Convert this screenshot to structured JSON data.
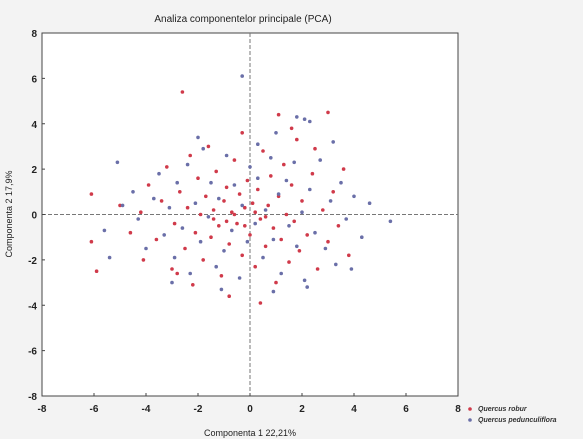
{
  "chart_data": {
    "type": "scatter",
    "title": "Analiza componentelor principale (PCA)",
    "xlabel": "Componenta 1  22,21%",
    "ylabel": "Componenta 2 17,9%",
    "xlim": [
      -8,
      8
    ],
    "ylim": [
      -8,
      8
    ],
    "xticks": [
      "-8",
      "-6",
      "-4",
      "-2",
      "0",
      "2",
      "4",
      "6",
      "8"
    ],
    "yticks": [
      "8",
      "6",
      "4",
      "2",
      "0",
      "-2",
      "-4",
      "-6",
      "-8"
    ],
    "zero_lines": true,
    "legend_position": "bottom-right",
    "series": [
      {
        "name": "Quercus robur",
        "color": "#d03a4a",
        "points": [
          [
            -2.6,
            5.4
          ],
          [
            1.1,
            4.4
          ],
          [
            3.0,
            4.5
          ],
          [
            -6.1,
            0.9
          ],
          [
            -6.1,
            -1.2
          ],
          [
            -5.9,
            -2.5
          ],
          [
            -5.0,
            0.4
          ],
          [
            -4.6,
            -0.8
          ],
          [
            -4.2,
            0.1
          ],
          [
            -3.9,
            1.3
          ],
          [
            -3.6,
            -1.1
          ],
          [
            -3.4,
            0.6
          ],
          [
            -3.2,
            2.1
          ],
          [
            -3.0,
            -2.4
          ],
          [
            -2.9,
            -0.4
          ],
          [
            -2.7,
            1.0
          ],
          [
            -2.5,
            -1.5
          ],
          [
            -2.4,
            0.3
          ],
          [
            -2.3,
            2.6
          ],
          [
            -2.2,
            -3.1
          ],
          [
            -2.1,
            -0.8
          ],
          [
            -2.0,
            1.6
          ],
          [
            -1.9,
            0.0
          ],
          [
            -1.8,
            -2.0
          ],
          [
            -1.7,
            0.8
          ],
          [
            -1.6,
            3.0
          ],
          [
            -1.5,
            -1.0
          ],
          [
            -1.4,
            0.2
          ],
          [
            -1.3,
            1.9
          ],
          [
            -1.2,
            -0.5
          ],
          [
            -1.1,
            -2.7
          ],
          [
            -1.0,
            0.6
          ],
          [
            -0.9,
            1.2
          ],
          [
            -0.8,
            -1.3
          ],
          [
            -0.7,
            0.1
          ],
          [
            -0.6,
            2.4
          ],
          [
            -0.5,
            -0.4
          ],
          [
            -0.4,
            0.9
          ],
          [
            -0.3,
            -1.8
          ],
          [
            -0.2,
            0.3
          ],
          [
            -0.1,
            1.5
          ],
          [
            0.0,
            -0.9
          ],
          [
            0.1,
            0.5
          ],
          [
            0.2,
            -2.3
          ],
          [
            0.3,
            1.1
          ],
          [
            0.4,
            -0.2
          ],
          [
            0.5,
            2.8
          ],
          [
            0.6,
            -1.4
          ],
          [
            0.7,
            0.4
          ],
          [
            0.8,
            1.7
          ],
          [
            0.9,
            -0.6
          ],
          [
            1.0,
            -3.0
          ],
          [
            1.1,
            0.8
          ],
          [
            1.2,
            -1.1
          ],
          [
            1.3,
            2.2
          ],
          [
            1.4,
            0.0
          ],
          [
            1.5,
            -2.1
          ],
          [
            1.6,
            1.3
          ],
          [
            1.7,
            -0.3
          ],
          [
            1.8,
            3.3
          ],
          [
            1.9,
            -1.6
          ],
          [
            2.0,
            0.6
          ],
          [
            2.2,
            -0.9
          ],
          [
            2.4,
            1.8
          ],
          [
            2.6,
            -2.4
          ],
          [
            2.8,
            0.2
          ],
          [
            3.0,
            -1.2
          ],
          [
            3.2,
            1.0
          ],
          [
            3.4,
            -0.5
          ],
          [
            3.6,
            2.0
          ],
          [
            3.8,
            -1.8
          ],
          [
            -0.8,
            -3.6
          ],
          [
            0.4,
            -3.9
          ],
          [
            -2.8,
            -2.6
          ],
          [
            -4.1,
            -2.0
          ],
          [
            -0.3,
            3.6
          ],
          [
            1.6,
            3.8
          ],
          [
            2.5,
            2.9
          ],
          [
            -1.4,
            -0.2
          ],
          [
            -0.6,
            0.0
          ],
          [
            0.2,
            0.1
          ],
          [
            -0.9,
            -0.3
          ],
          [
            0.6,
            -0.1
          ],
          [
            -0.2,
            -0.5
          ]
        ]
      },
      {
        "name": "Quercus pedunculiflora",
        "color": "#6a6fa8",
        "points": [
          [
            -0.3,
            6.1
          ],
          [
            1.8,
            4.3
          ],
          [
            2.1,
            4.2
          ],
          [
            2.3,
            4.1
          ],
          [
            -5.1,
            2.3
          ],
          [
            -5.4,
            -1.9
          ],
          [
            -4.5,
            1.0
          ],
          [
            -4.3,
            -0.2
          ],
          [
            -4.0,
            -1.5
          ],
          [
            -3.7,
            0.7
          ],
          [
            -3.5,
            1.8
          ],
          [
            -3.3,
            -0.9
          ],
          [
            -3.1,
            0.3
          ],
          [
            -2.9,
            -1.9
          ],
          [
            -2.8,
            1.4
          ],
          [
            -2.6,
            -0.6
          ],
          [
            -2.4,
            2.2
          ],
          [
            -2.3,
            -2.6
          ],
          [
            -2.1,
            0.5
          ],
          [
            -1.9,
            -1.2
          ],
          [
            -1.8,
            2.9
          ],
          [
            -1.6,
            -0.1
          ],
          [
            -1.5,
            1.4
          ],
          [
            -1.3,
            -2.3
          ],
          [
            -1.2,
            0.7
          ],
          [
            -1.0,
            -1.6
          ],
          [
            -0.9,
            2.6
          ],
          [
            -0.7,
            -0.7
          ],
          [
            -0.6,
            1.3
          ],
          [
            -0.4,
            -2.8
          ],
          [
            -0.3,
            0.4
          ],
          [
            -0.1,
            -1.2
          ],
          [
            0.0,
            2.1
          ],
          [
            0.2,
            -0.4
          ],
          [
            0.3,
            1.6
          ],
          [
            0.5,
            -1.9
          ],
          [
            0.6,
            0.2
          ],
          [
            0.8,
            2.5
          ],
          [
            0.9,
            -1.1
          ],
          [
            1.1,
            0.9
          ],
          [
            1.2,
            -2.6
          ],
          [
            1.4,
            1.5
          ],
          [
            1.5,
            -0.5
          ],
          [
            1.7,
            2.3
          ],
          [
            1.8,
            -1.4
          ],
          [
            2.0,
            0.1
          ],
          [
            2.1,
            -2.9
          ],
          [
            2.3,
            1.1
          ],
          [
            2.5,
            -0.8
          ],
          [
            2.7,
            2.4
          ],
          [
            2.9,
            -1.5
          ],
          [
            3.1,
            0.6
          ],
          [
            3.3,
            -2.2
          ],
          [
            3.5,
            1.4
          ],
          [
            3.7,
            -0.2
          ],
          [
            4.0,
            0.8
          ],
          [
            4.3,
            -1.0
          ],
          [
            4.6,
            0.5
          ],
          [
            5.4,
            -0.3
          ],
          [
            -3.0,
            -3.0
          ],
          [
            -1.1,
            -3.3
          ],
          [
            0.9,
            -3.4
          ],
          [
            2.2,
            -3.2
          ],
          [
            -2.0,
            3.4
          ],
          [
            0.3,
            3.1
          ],
          [
            1.0,
            3.6
          ],
          [
            3.2,
            3.2
          ],
          [
            -4.9,
            0.4
          ],
          [
            -5.6,
            -0.7
          ],
          [
            3.9,
            -2.4
          ]
        ]
      }
    ]
  }
}
